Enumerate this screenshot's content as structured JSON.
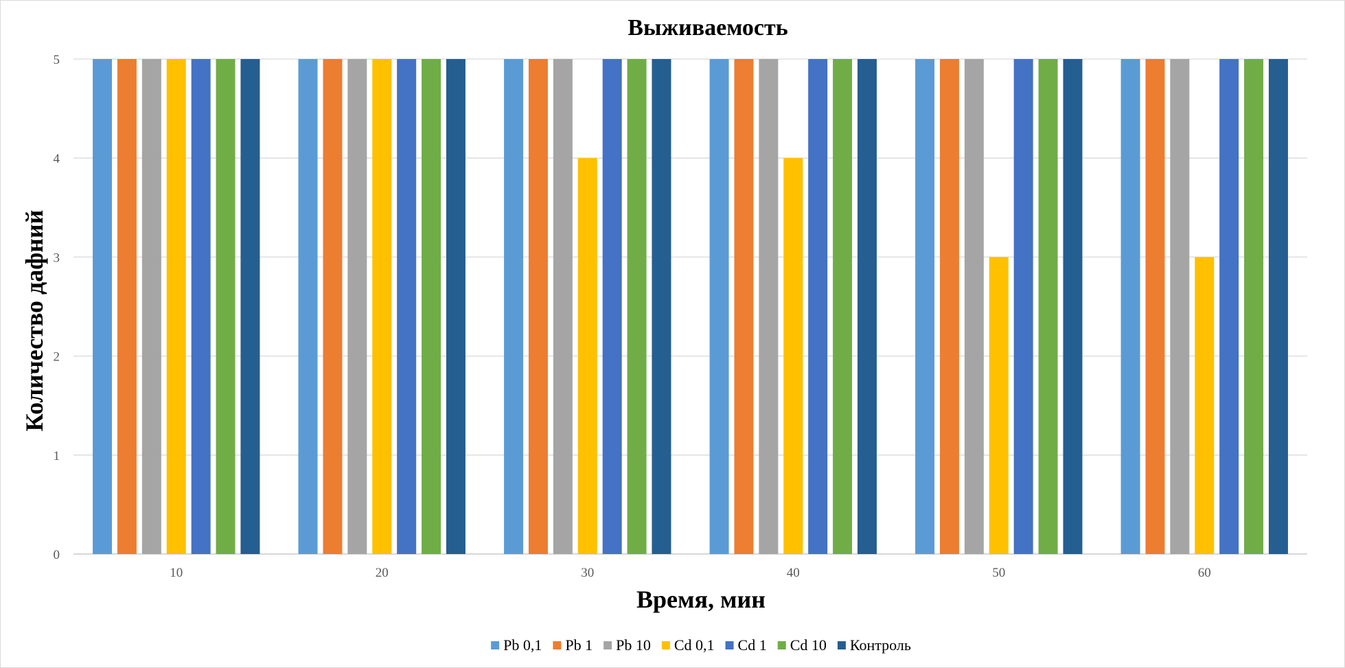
{
  "chart_data": {
    "type": "bar",
    "title": "Выживаемость",
    "xlabel": "Время, мин",
    "ylabel": "Количество дафний",
    "categories": [
      "10",
      "20",
      "30",
      "40",
      "50",
      "60"
    ],
    "ylim": [
      0,
      5
    ],
    "yticks": [
      0,
      1,
      2,
      3,
      4,
      5
    ],
    "grid": true,
    "legend_position": "bottom",
    "series": [
      {
        "name": "Pb 0,1",
        "color": "#5B9BD5",
        "values": [
          5,
          5,
          5,
          5,
          5,
          5
        ]
      },
      {
        "name": "Pb 1",
        "color": "#ED7D31",
        "values": [
          5,
          5,
          5,
          5,
          5,
          5
        ]
      },
      {
        "name": "Pb 10",
        "color": "#A5A5A5",
        "values": [
          5,
          5,
          5,
          5,
          5,
          5
        ]
      },
      {
        "name": "Cd 0,1",
        "color": "#FFC000",
        "values": [
          5,
          5,
          4,
          4,
          3,
          3
        ]
      },
      {
        "name": "Cd 1",
        "color": "#4472C4",
        "values": [
          5,
          5,
          5,
          5,
          5,
          5
        ]
      },
      {
        "name": "Cd 10",
        "color": "#70AD47",
        "values": [
          5,
          5,
          5,
          5,
          5,
          5
        ]
      },
      {
        "name": "Контроль",
        "color": "#255E91",
        "values": [
          5,
          5,
          5,
          5,
          5,
          5
        ]
      }
    ]
  }
}
